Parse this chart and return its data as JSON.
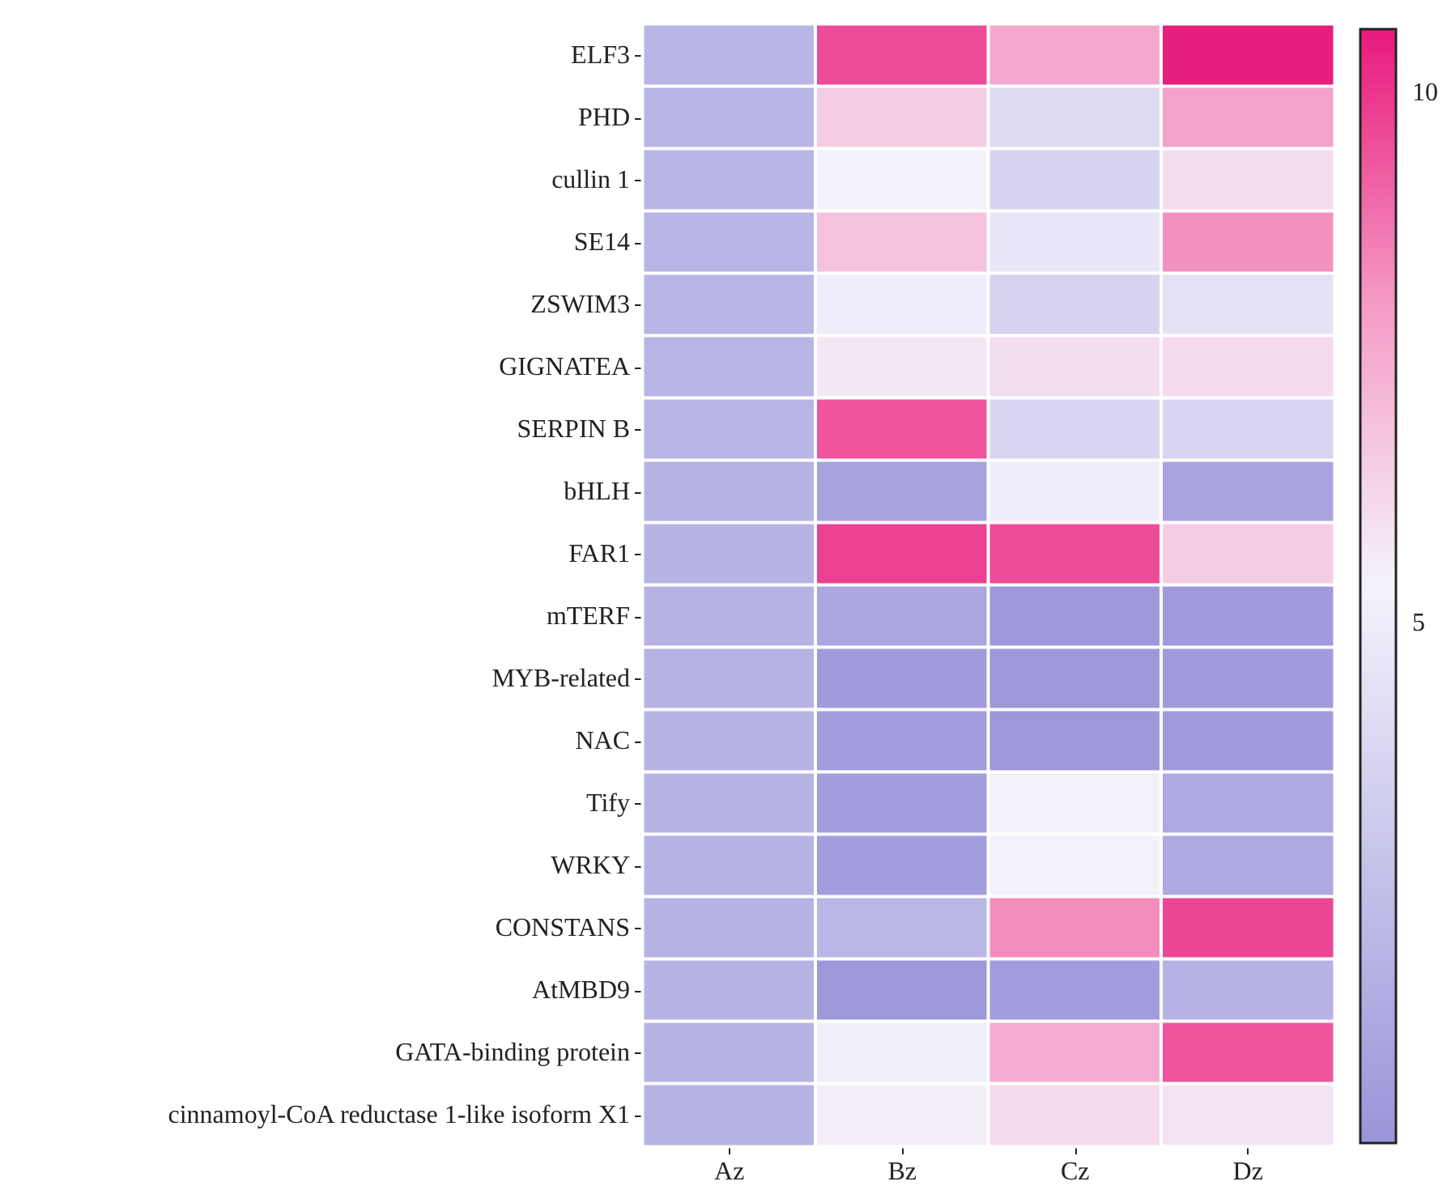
{
  "chart_data": {
    "type": "heatmap",
    "categories": [
      "Az",
      "Bz",
      "Cz",
      "Dz"
    ],
    "y_categories": [
      "ELF3",
      "PHD",
      "cullin 1",
      "SE14",
      "ZSWIM3",
      "GIGNATEA",
      "SERPIN B",
      "bHLH",
      "FAR1",
      "mTERF",
      "MYB-related",
      "NAC",
      "Tify",
      "WRKY",
      "CONSTANS",
      "AtMBD9",
      "GATA-binding protein",
      "cinnamoyl-CoA reductase 1-like isoform X1"
    ],
    "cells": [
      [
        1.9,
        9.6,
        7.6,
        10.5
      ],
      [
        1.9,
        6.5,
        4.0,
        7.8
      ],
      [
        1.9,
        5.3,
        3.6,
        6.0
      ],
      [
        1.9,
        6.8,
        4.7,
        8.2
      ],
      [
        1.9,
        5.0,
        3.6,
        4.4
      ],
      [
        1.9,
        5.7,
        6.0,
        6.1
      ],
      [
        1.9,
        9.4,
        3.7,
        3.7
      ],
      [
        1.8,
        0.9,
        5.0,
        1.0
      ],
      [
        1.8,
        9.8,
        9.6,
        6.5
      ],
      [
        1.8,
        1.1,
        0.3,
        0.5
      ],
      [
        1.8,
        0.5,
        0.3,
        0.5
      ],
      [
        1.8,
        0.6,
        0.3,
        0.5
      ],
      [
        1.8,
        0.6,
        5.3,
        1.3
      ],
      [
        1.8,
        0.6,
        5.3,
        1.3
      ],
      [
        1.8,
        2.0,
        8.3,
        9.7
      ],
      [
        1.8,
        0.3,
        0.6,
        1.8
      ],
      [
        1.8,
        5.1,
        7.5,
        9.4
      ],
      [
        1.8,
        5.5,
        6.1,
        5.8
      ]
    ],
    "clim": [
      0.1,
      10.6
    ],
    "cticks": [
      5,
      10
    ]
  }
}
